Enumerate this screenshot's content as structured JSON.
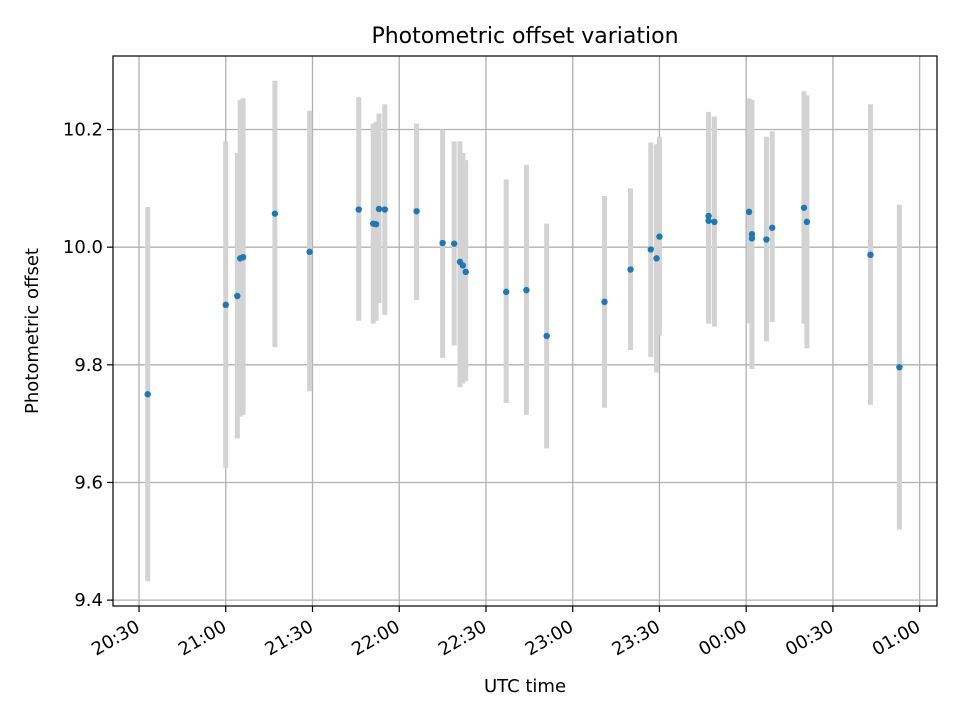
{
  "chart_data": {
    "type": "scatter",
    "title": "Photometric offset variation",
    "xlabel": "UTC time",
    "ylabel": "Photometric offset",
    "x_ticks": [
      "20:30",
      "21:00",
      "21:30",
      "22:00",
      "22:30",
      "23:00",
      "23:30",
      "00:00",
      "00:30",
      "01:00"
    ],
    "y_ticks": [
      "9.4",
      "9.6",
      "9.8",
      "10.0",
      "10.2"
    ],
    "x_tick_times": [
      "20:30",
      "21:00",
      "21:30",
      "22:00",
      "22:30",
      "23:00",
      "23:30",
      "00:00",
      "00:30",
      "01:00"
    ],
    "y_tick_values": [
      9.4,
      9.6,
      9.8,
      10.0,
      10.2
    ],
    "xlim": [
      "20:21",
      "01:06"
    ],
    "ylim": [
      9.39,
      10.325
    ],
    "grid": true,
    "point_color": "#1f77b4",
    "errorbar_color": "#d3d3d3",
    "points": [
      {
        "time": "20:33",
        "y": 9.75,
        "low": 9.432,
        "high": 10.068
      },
      {
        "time": "21:00",
        "y": 9.902,
        "low": 9.625,
        "high": 10.18
      },
      {
        "time": "21:04",
        "y": 9.917,
        "low": 9.675,
        "high": 10.16
      },
      {
        "time": "21:05",
        "y": 9.981,
        "low": 9.712,
        "high": 10.25
      },
      {
        "time": "21:06",
        "y": 9.983,
        "low": 9.715,
        "high": 10.253
      },
      {
        "time": "21:17",
        "y": 10.057,
        "low": 9.83,
        "high": 10.283
      },
      {
        "time": "21:29",
        "y": 9.992,
        "low": 9.755,
        "high": 10.232
      },
      {
        "time": "21:46",
        "y": 10.064,
        "low": 9.875,
        "high": 10.255
      },
      {
        "time": "21:51",
        "y": 10.04,
        "low": 9.87,
        "high": 10.21
      },
      {
        "time": "21:52",
        "y": 10.039,
        "low": 9.875,
        "high": 10.213
      },
      {
        "time": "21:53",
        "y": 10.065,
        "low": 9.905,
        "high": 10.227
      },
      {
        "time": "21:55",
        "y": 10.064,
        "low": 9.885,
        "high": 10.243
      },
      {
        "time": "22:06",
        "y": 10.061,
        "low": 9.91,
        "high": 10.21
      },
      {
        "time": "22:15",
        "y": 10.007,
        "low": 9.812,
        "high": 10.2
      },
      {
        "time": "22:19",
        "y": 10.006,
        "low": 9.833,
        "high": 10.18
      },
      {
        "time": "22:21",
        "y": 9.975,
        "low": 9.762,
        "high": 10.18
      },
      {
        "time": "22:22",
        "y": 9.969,
        "low": 9.768,
        "high": 10.16
      },
      {
        "time": "22:23",
        "y": 9.958,
        "low": 9.772,
        "high": 10.148
      },
      {
        "time": "22:37",
        "y": 9.924,
        "low": 9.735,
        "high": 10.115
      },
      {
        "time": "22:44",
        "y": 9.927,
        "low": 9.715,
        "high": 10.14
      },
      {
        "time": "22:51",
        "y": 9.849,
        "low": 9.658,
        "high": 10.04
      },
      {
        "time": "23:11",
        "y": 9.907,
        "low": 9.727,
        "high": 10.087
      },
      {
        "time": "23:20",
        "y": 9.962,
        "low": 9.825,
        "high": 10.1
      },
      {
        "time": "23:27",
        "y": 9.996,
        "low": 9.813,
        "high": 10.178
      },
      {
        "time": "23:29",
        "y": 9.981,
        "low": 9.787,
        "high": 10.175
      },
      {
        "time": "23:30",
        "y": 10.018,
        "low": 9.85,
        "high": 10.188
      },
      {
        "time": "23:47",
        "y": 10.053,
        "low": 9.87,
        "high": 10.23
      },
      {
        "time": "23:47",
        "y": 10.045,
        "low": 9.87,
        "high": 10.225
      },
      {
        "time": "23:49",
        "y": 10.043,
        "low": 9.865,
        "high": 10.222
      },
      {
        "time": "00:01",
        "y": 10.06,
        "low": 9.87,
        "high": 10.253
      },
      {
        "time": "00:02",
        "y": 10.022,
        "low": 9.793,
        "high": 10.25
      },
      {
        "time": "00:02",
        "y": 10.015,
        "low": 9.795,
        "high": 10.238
      },
      {
        "time": "00:07",
        "y": 10.013,
        "low": 9.84,
        "high": 10.188
      },
      {
        "time": "00:09",
        "y": 10.033,
        "low": 9.873,
        "high": 10.197
      },
      {
        "time": "00:20",
        "y": 10.067,
        "low": 9.87,
        "high": 10.265
      },
      {
        "time": "00:21",
        "y": 10.043,
        "low": 9.828,
        "high": 10.258
      },
      {
        "time": "00:43",
        "y": 9.987,
        "low": 9.732,
        "high": 10.243
      },
      {
        "time": "00:53",
        "y": 9.796,
        "low": 9.52,
        "high": 10.072
      }
    ]
  }
}
